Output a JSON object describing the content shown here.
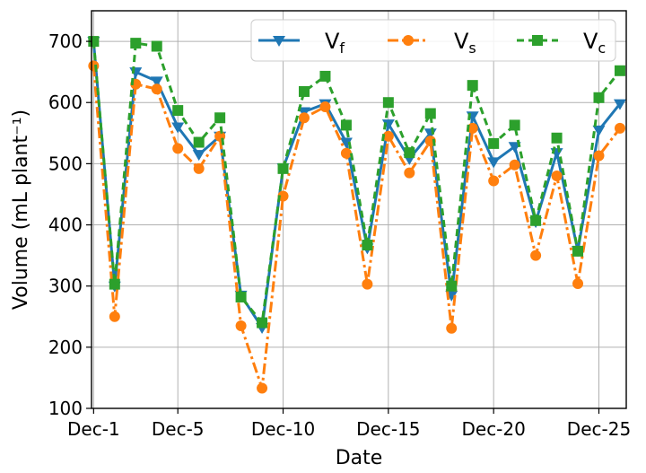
{
  "chart_data": {
    "type": "line",
    "xlabel": "Date",
    "ylabel": "Volume (mL plant⁻¹)",
    "x_ticks": [
      "Dec-1",
      "Dec-5",
      "Dec-10",
      "Dec-15",
      "Dec-20",
      "Dec-25"
    ],
    "x_tick_days": [
      1,
      5,
      10,
      15,
      20,
      25
    ],
    "xlim": [
      0.9,
      26.3
    ],
    "ylim": [
      100,
      750
    ],
    "y_ticks": [
      100,
      200,
      300,
      400,
      500,
      600,
      700
    ],
    "grid": true,
    "legend_position": "top-right",
    "x_days": [
      1,
      2,
      3,
      4,
      5,
      6,
      7,
      8,
      9,
      10,
      11,
      12,
      13,
      14,
      15,
      16,
      17,
      18,
      19,
      20,
      21,
      22,
      23,
      24,
      25,
      26
    ],
    "series": [
      {
        "name_main": "V",
        "name_sub": "f",
        "color": "#1f77b4",
        "dash": "",
        "marker": "triangle-down",
        "values": [
          700,
          300,
          650,
          635,
          560,
          515,
          545,
          285,
          232,
          493,
          585,
          598,
          535,
          362,
          565,
          508,
          550,
          285,
          578,
          503,
          528,
          405,
          518,
          358,
          555,
          598
        ]
      },
      {
        "name_main": "V",
        "name_sub": "s",
        "color": "#ff7f0e",
        "dash": "12,4,3,4",
        "marker": "circle",
        "values": [
          660,
          250,
          630,
          622,
          525,
          492,
          545,
          235,
          133,
          447,
          575,
          593,
          517,
          303,
          545,
          485,
          537,
          231,
          558,
          472,
          498,
          350,
          480,
          304,
          513,
          558
        ]
      },
      {
        "name_main": "V",
        "name_sub": "c",
        "color": "#2ca02c",
        "dash": "8,5",
        "marker": "square",
        "values": [
          700,
          303,
          697,
          692,
          587,
          535,
          575,
          282,
          240,
          492,
          618,
          643,
          563,
          367,
          600,
          518,
          582,
          300,
          628,
          533,
          563,
          407,
          542,
          357,
          608,
          652
        ]
      }
    ]
  }
}
